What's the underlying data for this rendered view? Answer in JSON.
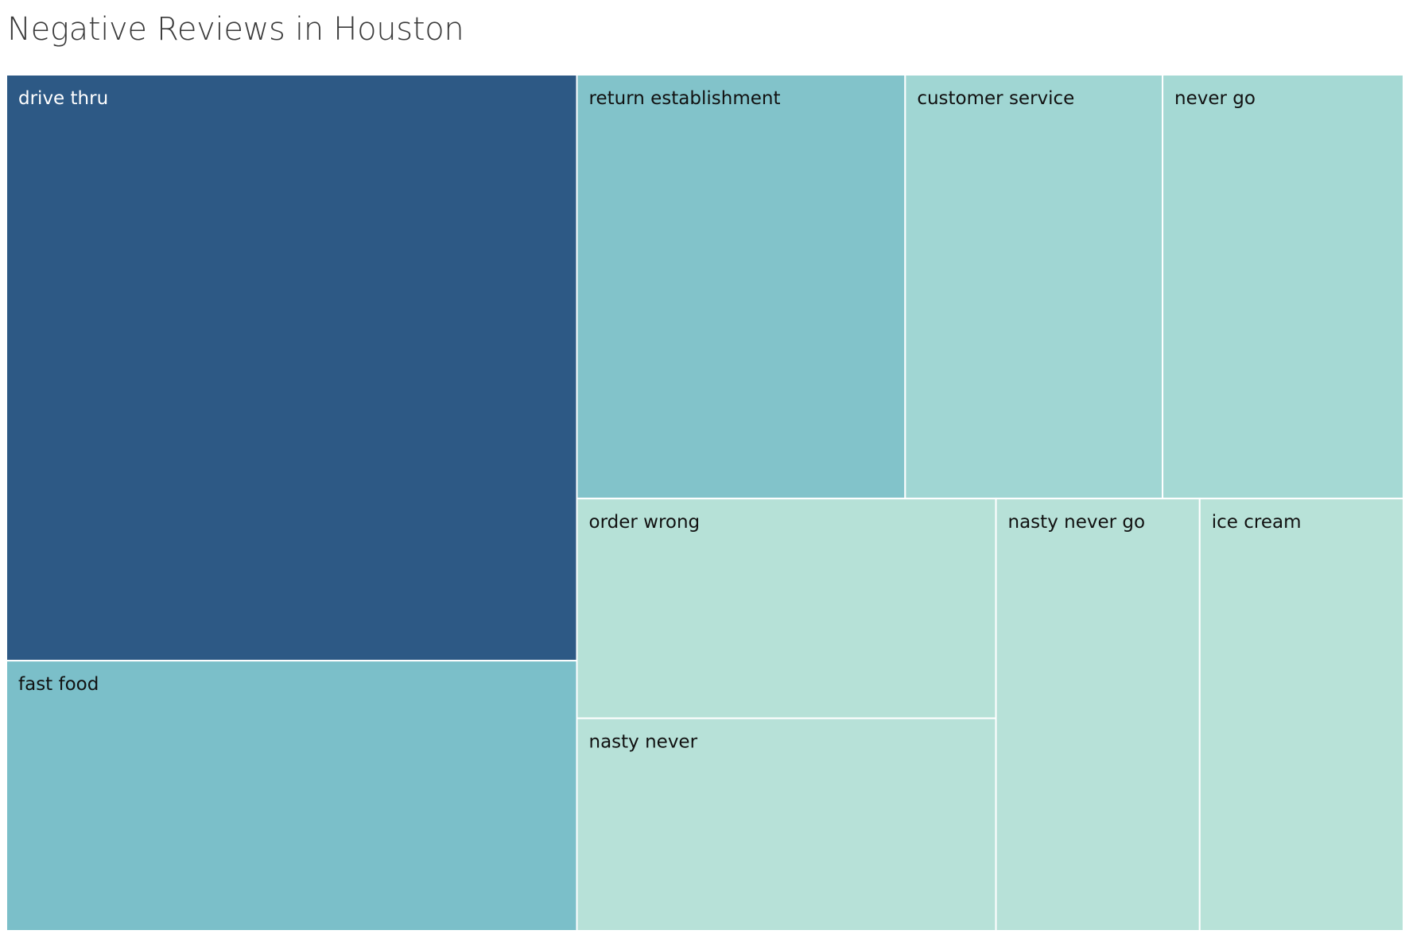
{
  "chart_data": {
    "type": "treemap",
    "title": "Negative Reviews in Houston",
    "color_scale": {
      "low": "#b6e1d7",
      "mid": "#7bbfc9",
      "high": "#2d5985"
    },
    "items": [
      {
        "label": "drive thru",
        "value": 33.4,
        "color": "#2d5985",
        "text_color": "#ffffff"
      },
      {
        "label": "fast food",
        "value": 15.4,
        "color": "#7bbfc9",
        "text_color": "#111111"
      },
      {
        "label": "return establishment",
        "value": 13.9,
        "color": "#82c3ca",
        "text_color": "#111111"
      },
      {
        "label": "customer service",
        "value": 10.9,
        "color": "#a0d6d3",
        "text_color": "#111111"
      },
      {
        "label": "never go",
        "value": 10.2,
        "color": "#a5d9d4",
        "text_color": "#111111"
      },
      {
        "label": "order wrong",
        "value": 9.2,
        "color": "#b6e1d7",
        "text_color": "#111111"
      },
      {
        "label": "nasty never",
        "value": 8.9,
        "color": "#b7e1d8",
        "text_color": "#111111"
      },
      {
        "label": "nasty never go",
        "value": 8.8,
        "color": "#b7e1d8",
        "text_color": "#111111"
      },
      {
        "label": "ice cream",
        "value": 8.8,
        "color": "#b8e2d8",
        "text_color": "#111111"
      }
    ]
  }
}
